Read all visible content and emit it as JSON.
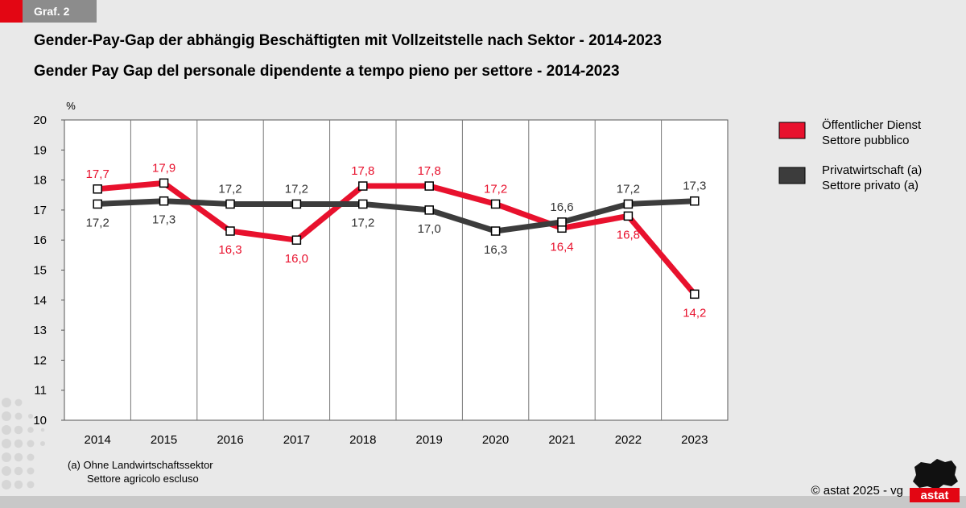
{
  "header": {
    "badge": "Graf. 2",
    "title_de": "Gender-Pay-Gap der abhängig Beschäftigten mit Vollzeitstelle nach Sektor - 2014-2023",
    "title_it": "Gender Pay Gap del personale dipendente a tempo pieno per settore - 2014-2023"
  },
  "chart_data": {
    "type": "line",
    "y_unit": "%",
    "categories": [
      "2014",
      "2015",
      "2016",
      "2017",
      "2018",
      "2019",
      "2020",
      "2021",
      "2022",
      "2023"
    ],
    "ylim": [
      10,
      20
    ],
    "yticks": [
      "10",
      "11",
      "12",
      "13",
      "14",
      "15",
      "16",
      "17",
      "18",
      "19",
      "20"
    ],
    "grid": "vertical",
    "legend_position": "right",
    "series": [
      {
        "name_de": "Öffentlicher Dienst",
        "name_it": "Settore pubblico",
        "color": "#e8112d",
        "values": [
          17.7,
          17.9,
          16.3,
          16.0,
          17.8,
          17.8,
          17.2,
          16.4,
          16.8,
          14.2
        ],
        "labels": [
          "17,7",
          "17,9",
          "16,3",
          "16,0",
          "17,8",
          "17,8",
          "17,2",
          "16,4",
          "16,8",
          "14,2"
        ],
        "label_pos": [
          "above",
          "above",
          "below",
          "below",
          "above",
          "above",
          "above",
          "below",
          "below",
          "below"
        ]
      },
      {
        "name_de": "Privatwirtschaft (a)",
        "name_it": "Settore privato (a)",
        "color": "#3c3c3c",
        "values": [
          17.2,
          17.3,
          17.2,
          17.2,
          17.2,
          17.0,
          16.3,
          16.6,
          17.2,
          17.3
        ],
        "labels": [
          "17,2",
          "17,3",
          "17,2",
          "17,2",
          "17,2",
          "17,0",
          "16,3",
          "16,6",
          "17,2",
          "17,3"
        ],
        "label_pos": [
          "below",
          "below",
          "above",
          "above",
          "below",
          "below",
          "below",
          "above",
          "above",
          "above"
        ]
      }
    ]
  },
  "footnote": {
    "line1": "(a)  Ohne Landwirtschaftssektor",
    "line2": "Settore agricolo escluso"
  },
  "copyright": "©  astat 2025 - vg",
  "logo_text": "astat",
  "colors": {
    "accent": "#e30613",
    "badge_bg": "#8c8c8c",
    "background": "#e9e9e9"
  }
}
